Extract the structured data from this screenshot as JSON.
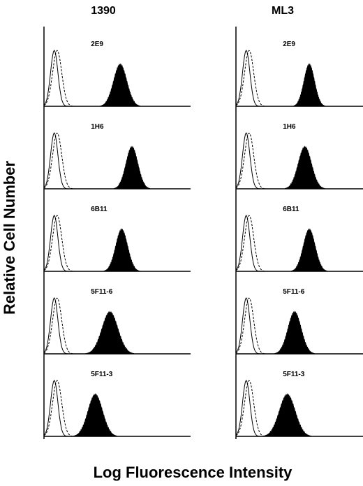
{
  "chart_data": {
    "type": "histogram-grid",
    "title": "",
    "xlabel": "Log Fluorescence Intensity",
    "ylabel": "Relative Cell Number",
    "columns": [
      "1390",
      "ML3"
    ],
    "rows": [
      "2E9",
      "1H6",
      "6B11",
      "5F11-6",
      "5F11-3"
    ],
    "panels": [
      {
        "column": "1390",
        "label": "2E9",
        "control_peaks": [
          0.07,
          0.09
        ],
        "stained_peak": 0.52,
        "stained_width": 0.1,
        "stained_height": 0.75
      },
      {
        "column": "1390",
        "label": "1H6",
        "control_peaks": [
          0.07,
          0.09
        ],
        "stained_peak": 0.6,
        "stained_width": 0.09,
        "stained_height": 0.75
      },
      {
        "column": "1390",
        "label": "6B11",
        "control_peaks": [
          0.07,
          0.09
        ],
        "stained_peak": 0.53,
        "stained_width": 0.09,
        "stained_height": 0.75
      },
      {
        "column": "1390",
        "label": "5F11-6",
        "control_peaks": [
          0.07,
          0.09
        ],
        "stained_peak": 0.45,
        "stained_width": 0.12,
        "stained_height": 0.75
      },
      {
        "column": "1390",
        "label": "5F11-3",
        "control_peaks": [
          0.07,
          0.09
        ],
        "stained_peak": 0.35,
        "stained_width": 0.11,
        "stained_height": 0.75
      },
      {
        "column": "ML3",
        "label": "2E9",
        "control_peaks": [
          0.07,
          0.09
        ],
        "stained_peak": 0.5,
        "stained_width": 0.08,
        "stained_height": 0.75
      },
      {
        "column": "ML3",
        "label": "1H6",
        "control_peaks": [
          0.07,
          0.09
        ],
        "stained_peak": 0.47,
        "stained_width": 0.1,
        "stained_height": 0.75
      },
      {
        "column": "ML3",
        "label": "6B11",
        "control_peaks": [
          0.07,
          0.09
        ],
        "stained_peak": 0.5,
        "stained_width": 0.09,
        "stained_height": 0.75
      },
      {
        "column": "ML3",
        "label": "5F11-6",
        "control_peaks": [
          0.07,
          0.09
        ],
        "stained_peak": 0.4,
        "stained_width": 0.1,
        "stained_height": 0.75
      },
      {
        "column": "ML3",
        "label": "5F11-3",
        "control_peaks": [
          0.07,
          0.09
        ],
        "stained_peak": 0.35,
        "stained_width": 0.12,
        "stained_height": 0.75
      }
    ]
  }
}
